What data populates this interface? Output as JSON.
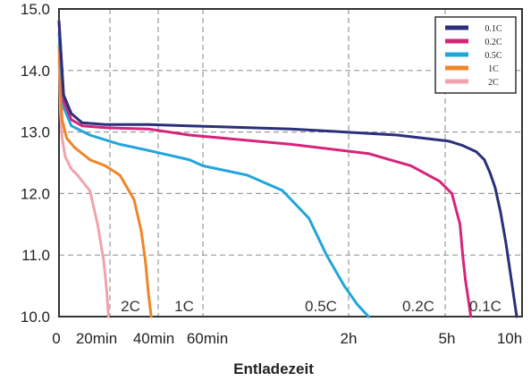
{
  "chart_data": {
    "type": "line",
    "xlabel": "Entladezeit",
    "ylabel": "",
    "ylim": [
      10.0,
      15.0
    ],
    "y_ticks": [
      "10.0",
      "11.0",
      "12.0",
      "13.0",
      "14.0",
      "15.0"
    ],
    "x_tick_labels": [
      "0",
      "20min",
      "40min",
      "60min",
      "2h",
      "5h",
      "10h"
    ],
    "grid": true,
    "legend_position": "top-right",
    "annotations": [
      "2C",
      "1C",
      "0.5C",
      "0.2C",
      "0.1C"
    ],
    "series": [
      {
        "name": "0.1C",
        "color": "#2b2f7a",
        "x": [
          0,
          0.03,
          0.08,
          0.15,
          0.3,
          0.6,
          0.9,
          1.2,
          1.5,
          1.7,
          1.8,
          1.9,
          1.96,
          2.0,
          2.04,
          2.08,
          2.12,
          2.16,
          2.2
        ],
        "y": [
          14.8,
          13.6,
          13.3,
          13.15,
          13.12,
          13.12,
          13.1,
          13.05,
          12.95,
          12.85,
          12.78,
          12.68,
          12.55,
          12.35,
          12.1,
          11.7,
          11.2,
          10.6,
          10.0
        ]
      },
      {
        "name": "0.2C",
        "color": "#d6247a",
        "x": [
          0,
          0.03,
          0.08,
          0.15,
          0.3,
          0.6,
          0.9,
          1.2,
          1.4,
          1.55,
          1.65,
          1.72,
          1.78,
          1.8,
          1.82,
          1.84,
          1.86
        ],
        "y": [
          14.8,
          13.5,
          13.2,
          13.1,
          13.07,
          13.05,
          12.95,
          12.8,
          12.65,
          12.45,
          12.2,
          12.0,
          11.5,
          11.0,
          10.6,
          10.3,
          10.0
        ]
      },
      {
        "name": "0.5C",
        "color": "#21a5dc",
        "x": [
          0,
          0.03,
          0.08,
          0.2,
          0.4,
          0.6,
          0.9,
          1.0,
          1.1,
          1.18,
          1.24,
          1.28,
          1.32,
          1.36,
          1.4
        ],
        "y": [
          14.6,
          13.4,
          13.1,
          12.95,
          12.8,
          12.7,
          12.55,
          12.45,
          12.3,
          12.05,
          11.6,
          11.0,
          10.5,
          10.2,
          10.0
        ]
      },
      {
        "name": "1C",
        "color": "#f08528",
        "x": [
          0,
          0.01,
          0.02,
          0.05,
          0.1,
          0.15,
          0.2,
          0.3,
          0.4,
          0.5,
          0.55,
          0.58,
          0.6,
          0.62
        ],
        "y": [
          14.4,
          13.6,
          13.2,
          12.9,
          12.75,
          12.65,
          12.55,
          12.45,
          12.3,
          11.9,
          11.4,
          10.9,
          10.4,
          10.0
        ]
      },
      {
        "name": "2C",
        "color": "#f0a3ae",
        "x": [
          0,
          0.01,
          0.02,
          0.04,
          0.08,
          0.12,
          0.15,
          0.2,
          0.25,
          0.29,
          0.31,
          0.32
        ],
        "y": [
          14.2,
          13.3,
          12.9,
          12.6,
          12.4,
          12.3,
          12.2,
          12.05,
          11.5,
          10.9,
          10.4,
          10.0
        ]
      }
    ]
  }
}
